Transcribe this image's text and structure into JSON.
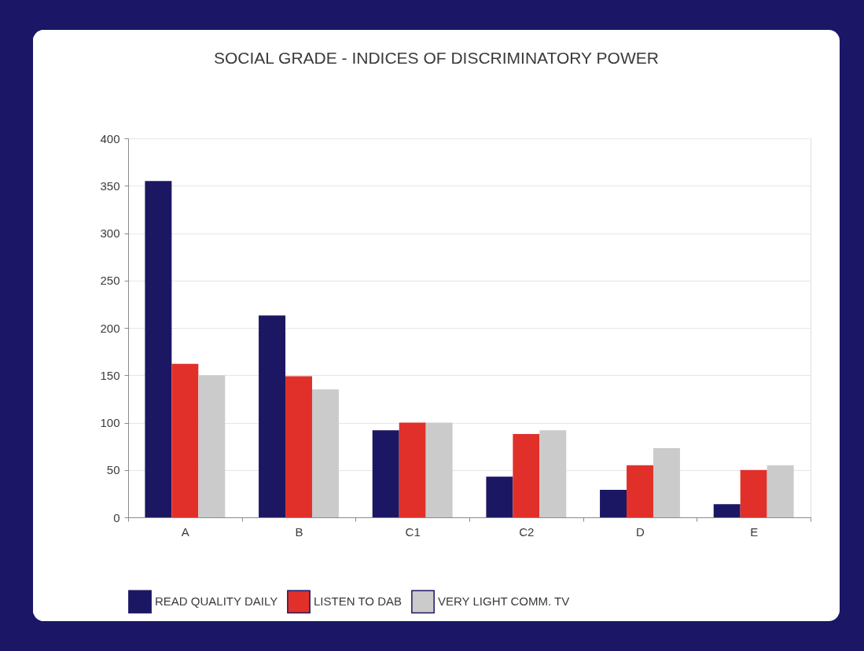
{
  "chart_data": {
    "type": "bar",
    "title": "SOCIAL GRADE - INDICES OF DISCRIMINATORY POWER",
    "categories": [
      "A",
      "B",
      "C1",
      "C2",
      "D",
      "E"
    ],
    "series": [
      {
        "name": "READ QUALITY DAILY",
        "color": "#1c1762",
        "values": [
          355,
          213,
          92,
          43,
          29,
          14
        ]
      },
      {
        "name": "LISTEN TO DAB",
        "color": "#e1302a",
        "values": [
          162,
          149,
          100,
          88,
          55,
          50
        ]
      },
      {
        "name": "VERY LIGHT COMM. TV",
        "color": "#cbcbcb",
        "values": [
          150,
          135,
          100,
          92,
          73,
          55
        ]
      }
    ],
    "ylim": [
      0,
      400
    ],
    "yticks": [
      0,
      50,
      100,
      150,
      200,
      250,
      300,
      350,
      400
    ],
    "grid": "y",
    "legend": "bottom"
  }
}
